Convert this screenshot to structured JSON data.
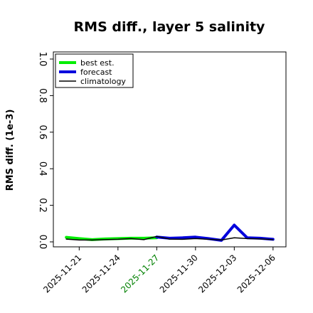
{
  "chart_data": {
    "type": "line",
    "title": "RMS diff., layer 5 salinity",
    "xlabel": "",
    "ylabel": "RMS diff. (1e-3)",
    "ylim": [
      0,
      1
    ],
    "yticks": [
      "0.0",
      "0.2",
      "0.4",
      "0.6",
      "0.8",
      "1.0"
    ],
    "xlim": [
      "2025-11-19",
      "2025-12-07"
    ],
    "xticks": [
      {
        "date": "2025-11-21",
        "label": "2025-11-21",
        "color": "#000000"
      },
      {
        "date": "2025-11-24",
        "label": "2025-11-24",
        "color": "#000000"
      },
      {
        "date": "2025-11-27",
        "label": "2025-11-27",
        "color": "#008000"
      },
      {
        "date": "2025-11-30",
        "label": "2025-11-30",
        "color": "#000000"
      },
      {
        "date": "2025-12-03",
        "label": "2025-12-03",
        "color": "#000000"
      },
      {
        "date": "2025-12-06",
        "label": "2025-12-06",
        "color": "#000000"
      }
    ],
    "legend_position": "top-left",
    "grid": false,
    "series": [
      {
        "name": "best est.",
        "color": "#00ee00",
        "width": 4,
        "points": [
          {
            "x": "2025-11-20",
            "y": 0.025
          },
          {
            "x": "2025-11-21",
            "y": 0.018
          },
          {
            "x": "2025-11-22",
            "y": 0.012
          },
          {
            "x": "2025-11-23",
            "y": 0.016
          },
          {
            "x": "2025-11-24",
            "y": 0.018
          },
          {
            "x": "2025-11-25",
            "y": 0.02
          },
          {
            "x": "2025-11-26",
            "y": 0.02
          },
          {
            "x": "2025-11-27",
            "y": 0.022
          }
        ]
      },
      {
        "name": "forecast",
        "color": "#0000dd",
        "width": 4,
        "points": [
          {
            "x": "2025-11-27",
            "y": 0.026
          },
          {
            "x": "2025-11-28",
            "y": 0.02
          },
          {
            "x": "2025-11-29",
            "y": 0.022
          },
          {
            "x": "2025-11-30",
            "y": 0.026
          },
          {
            "x": "2025-12-01",
            "y": 0.018
          },
          {
            "x": "2025-12-02",
            "y": 0.008
          },
          {
            "x": "2025-12-03",
            "y": 0.092
          },
          {
            "x": "2025-12-04",
            "y": 0.022
          },
          {
            "x": "2025-12-05",
            "y": 0.02
          },
          {
            "x": "2025-12-06",
            "y": 0.014
          }
        ]
      },
      {
        "name": "climatology",
        "color": "#000000",
        "width": 1.5,
        "points": [
          {
            "x": "2025-11-20",
            "y": 0.015
          },
          {
            "x": "2025-11-21",
            "y": 0.01
          },
          {
            "x": "2025-11-22",
            "y": 0.01
          },
          {
            "x": "2025-11-23",
            "y": 0.012
          },
          {
            "x": "2025-11-24",
            "y": 0.014
          },
          {
            "x": "2025-11-25",
            "y": 0.018
          },
          {
            "x": "2025-11-26",
            "y": 0.012
          },
          {
            "x": "2025-11-27",
            "y": 0.03
          },
          {
            "x": "2025-11-28",
            "y": 0.015
          },
          {
            "x": "2025-11-29",
            "y": 0.014
          },
          {
            "x": "2025-11-30",
            "y": 0.018
          },
          {
            "x": "2025-12-01",
            "y": 0.014
          },
          {
            "x": "2025-12-02",
            "y": 0.01
          },
          {
            "x": "2025-12-03",
            "y": 0.022
          },
          {
            "x": "2025-12-04",
            "y": 0.018
          },
          {
            "x": "2025-12-05",
            "y": 0.016
          },
          {
            "x": "2025-12-06",
            "y": 0.012
          }
        ]
      }
    ]
  }
}
